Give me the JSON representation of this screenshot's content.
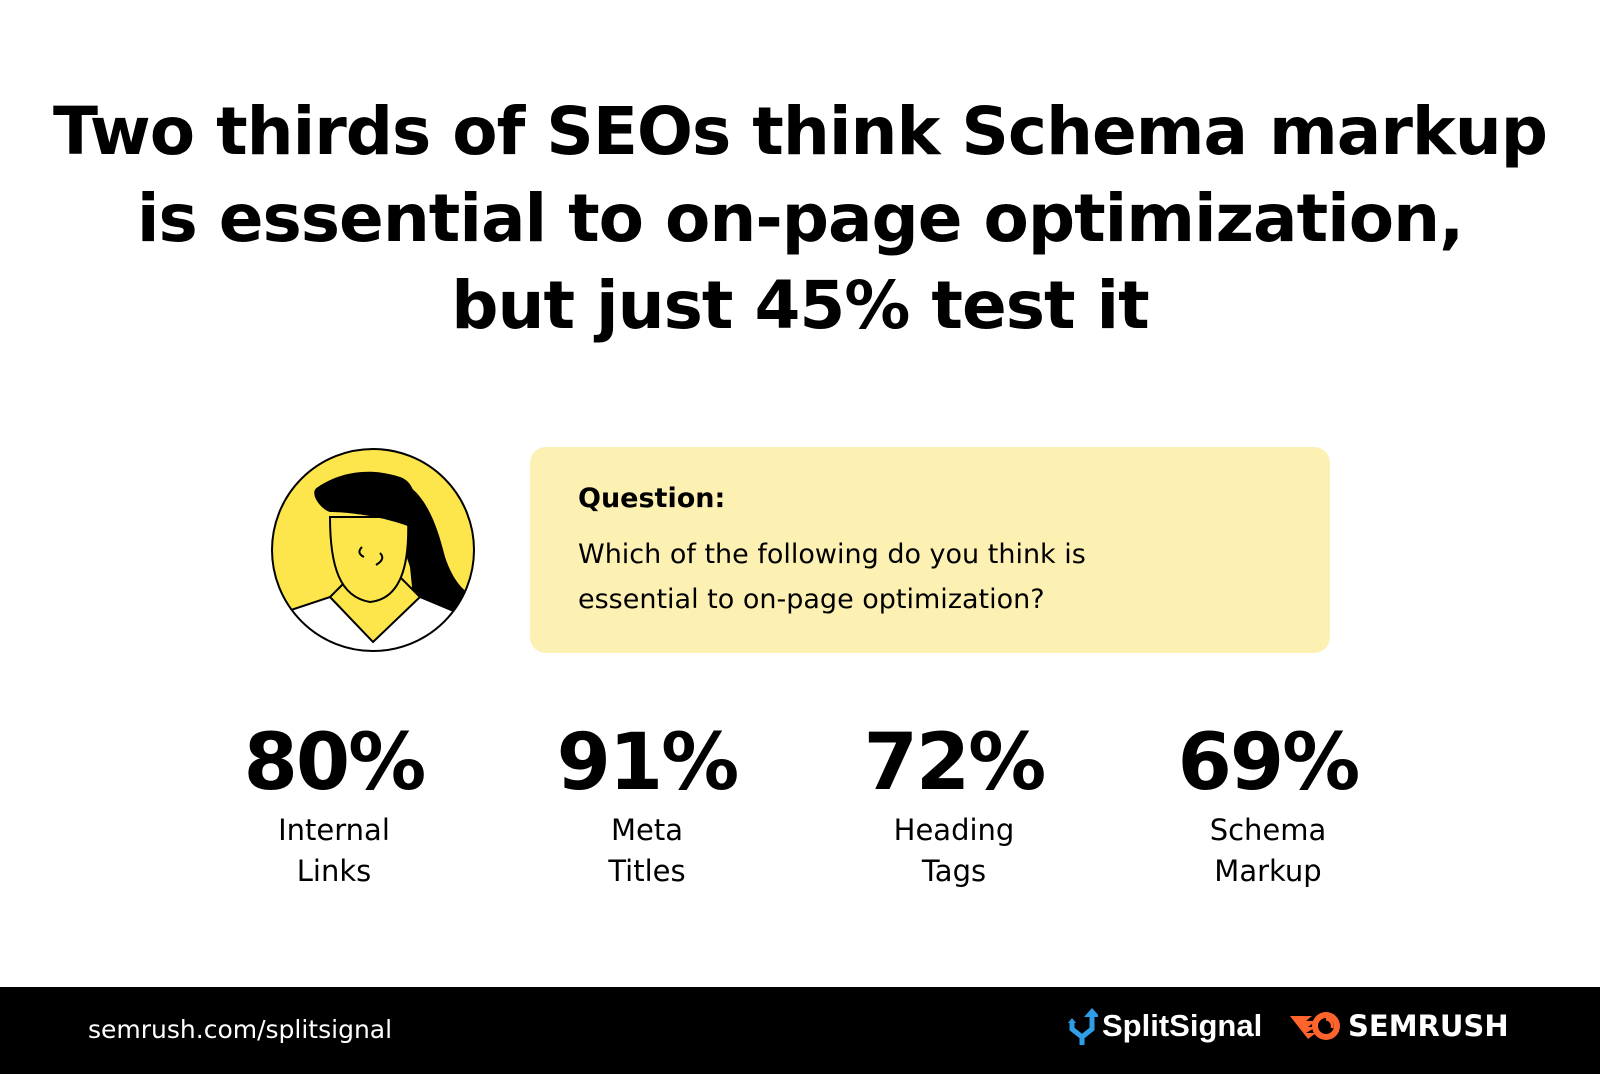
{
  "title": {
    "lines": [
      "Two thirds of SEOs think Schema markup",
      "is essential to on-page optimization,",
      "but just 45% test it"
    ]
  },
  "question": {
    "label": "Question:",
    "text": "Which of the following do you think is essential to on-page optimization?"
  },
  "stats": [
    {
      "value": "80%",
      "label_line1": "Internal",
      "label_line2": "Links"
    },
    {
      "value": "91%",
      "label_line1": "Meta",
      "label_line2": "Titles"
    },
    {
      "value": "72%",
      "label_line1": "Heading",
      "label_line2": "Tags"
    },
    {
      "value": "69%",
      "label_line1": "Schema",
      "label_line2": "Markup"
    }
  ],
  "footer": {
    "url": "semrush.com/splitsignal",
    "splitsignal_logo": "SplitSignal",
    "semrush_logo": "SEMRUSH"
  },
  "colors": {
    "question_bg": "#fdf0b3",
    "avatar_yellow": "#fde64b",
    "footer_bg": "#000000",
    "semrush_orange": "#ff642d",
    "splitsignal_blue": "#2f9ee8"
  }
}
